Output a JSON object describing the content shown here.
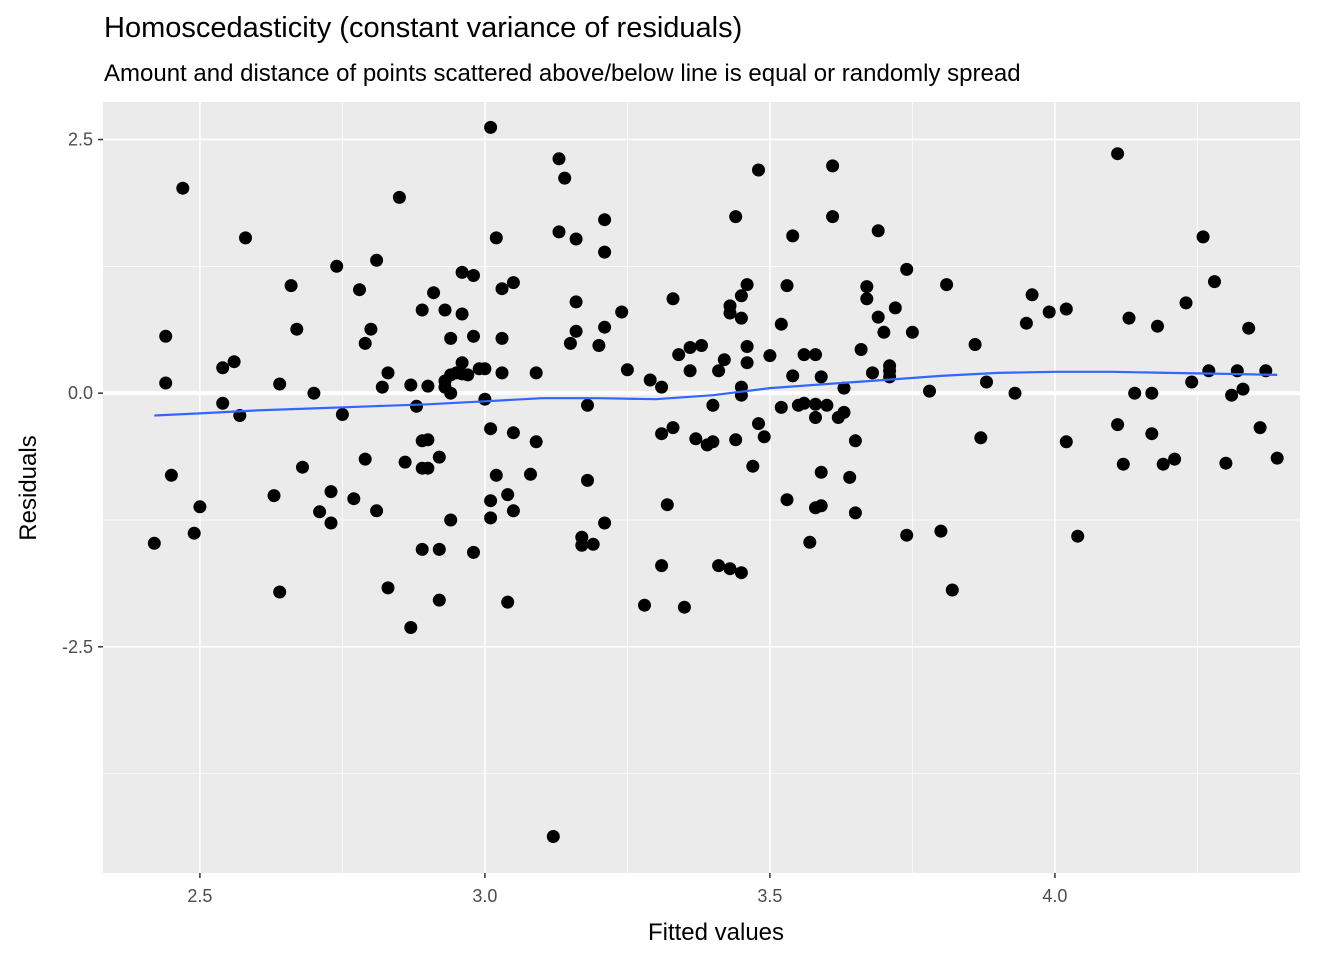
{
  "chart_data": {
    "type": "scatter",
    "title": "Homoscedasticity (constant variance of residuals)",
    "subtitle": "Amount and distance of points scattered above/below line is equal or randomly spread",
    "xlabel": "Fitted values",
    "ylabel": "Residuals",
    "xlim": [
      2.33,
      4.43
    ],
    "ylim": [
      -4.73,
      2.87
    ],
    "x_ticks": [
      2.5,
      3.0,
      3.5,
      4.0
    ],
    "x_tick_labels": [
      "2.5",
      "3.0",
      "3.5",
      "4.0"
    ],
    "y_ticks": [
      2.5,
      0.0,
      -2.5
    ],
    "y_tick_labels": [
      "2.5",
      "0.0",
      "-2.5"
    ],
    "grid": true,
    "reference_line": 0.0,
    "colors": {
      "panel": "#ebebeb",
      "grid": "#ffffff",
      "points": "#000000",
      "smooth": "#3366ff",
      "tick_text": "#4d4d4d"
    },
    "points": [
      [
        2.42,
        -1.48
      ],
      [
        2.44,
        0.56
      ],
      [
        2.44,
        0.1
      ],
      [
        2.45,
        -0.81
      ],
      [
        2.47,
        2.02
      ],
      [
        2.49,
        -1.38
      ],
      [
        2.5,
        -1.12
      ],
      [
        2.54,
        -0.1
      ],
      [
        2.54,
        0.25
      ],
      [
        2.56,
        0.31
      ],
      [
        2.57,
        -0.22
      ],
      [
        2.58,
        1.53
      ],
      [
        2.63,
        -1.01
      ],
      [
        2.64,
        -1.96
      ],
      [
        2.64,
        0.09
      ],
      [
        2.66,
        1.06
      ],
      [
        2.67,
        0.63
      ],
      [
        2.68,
        -0.73
      ],
      [
        2.7,
        0.0
      ],
      [
        2.71,
        -1.17
      ],
      [
        2.73,
        -0.97
      ],
      [
        2.73,
        -1.28
      ],
      [
        2.74,
        1.25
      ],
      [
        2.75,
        -0.21
      ],
      [
        2.77,
        -1.04
      ],
      [
        2.78,
        1.02
      ],
      [
        2.79,
        -0.65
      ],
      [
        2.79,
        0.49
      ],
      [
        2.8,
        0.63
      ],
      [
        2.81,
        1.31
      ],
      [
        2.81,
        -1.16
      ],
      [
        2.82,
        0.06
      ],
      [
        2.83,
        0.2
      ],
      [
        2.83,
        -1.92
      ],
      [
        2.85,
        1.93
      ],
      [
        2.86,
        -0.68
      ],
      [
        2.87,
        -2.31
      ],
      [
        2.87,
        0.08
      ],
      [
        2.88,
        -0.13
      ],
      [
        2.89,
        -0.74
      ],
      [
        2.89,
        -0.47
      ],
      [
        2.89,
        0.82
      ],
      [
        2.89,
        -1.54
      ],
      [
        2.9,
        -0.46
      ],
      [
        2.9,
        0.07
      ],
      [
        2.9,
        -0.74
      ],
      [
        2.91,
        0.99
      ],
      [
        2.92,
        -0.63
      ],
      [
        2.92,
        -2.04
      ],
      [
        2.92,
        -1.54
      ],
      [
        2.93,
        0.06
      ],
      [
        2.93,
        0.12
      ],
      [
        2.93,
        0.82
      ],
      [
        2.94,
        0.18
      ],
      [
        2.94,
        0.54
      ],
      [
        2.94,
        -1.25
      ],
      [
        2.94,
        0.0
      ],
      [
        2.95,
        0.2
      ],
      [
        2.96,
        0.3
      ],
      [
        2.96,
        0.78
      ],
      [
        2.96,
        0.19
      ],
      [
        2.96,
        1.19
      ],
      [
        2.97,
        0.18
      ],
      [
        2.98,
        1.16
      ],
      [
        2.98,
        -1.57
      ],
      [
        2.98,
        0.56
      ],
      [
        2.99,
        0.24
      ],
      [
        3.0,
        -0.06
      ],
      [
        3.0,
        0.24
      ],
      [
        3.01,
        2.62
      ],
      [
        3.01,
        -1.06
      ],
      [
        3.01,
        -1.23
      ],
      [
        3.01,
        -0.35
      ],
      [
        3.02,
        -0.81
      ],
      [
        3.02,
        1.53
      ],
      [
        3.03,
        0.54
      ],
      [
        3.03,
        0.2
      ],
      [
        3.03,
        1.03
      ],
      [
        3.04,
        -2.06
      ],
      [
        3.04,
        -1.0
      ],
      [
        3.05,
        -1.16
      ],
      [
        3.05,
        1.09
      ],
      [
        3.05,
        -0.39
      ],
      [
        3.08,
        -0.8
      ],
      [
        3.09,
        0.2
      ],
      [
        3.09,
        -0.48
      ],
      [
        3.12,
        -4.37
      ],
      [
        3.13,
        1.59
      ],
      [
        3.13,
        2.31
      ],
      [
        3.14,
        2.12
      ],
      [
        3.15,
        0.49
      ],
      [
        3.16,
        0.61
      ],
      [
        3.16,
        0.9
      ],
      [
        3.16,
        1.52
      ],
      [
        3.17,
        -1.5
      ],
      [
        3.17,
        -1.42
      ],
      [
        3.18,
        -0.12
      ],
      [
        3.18,
        -0.86
      ],
      [
        3.19,
        -1.49
      ],
      [
        3.2,
        0.47
      ],
      [
        3.21,
        1.39
      ],
      [
        3.21,
        0.65
      ],
      [
        3.21,
        -1.28
      ],
      [
        3.21,
        1.71
      ],
      [
        3.24,
        0.8
      ],
      [
        3.25,
        0.23
      ],
      [
        3.28,
        -2.09
      ],
      [
        3.29,
        0.13
      ],
      [
        3.31,
        -1.7
      ],
      [
        3.31,
        -0.4
      ],
      [
        3.31,
        0.06
      ],
      [
        3.32,
        -1.1
      ],
      [
        3.33,
        0.93
      ],
      [
        3.33,
        -0.34
      ],
      [
        3.34,
        0.38
      ],
      [
        3.35,
        -2.11
      ],
      [
        3.36,
        0.45
      ],
      [
        3.36,
        0.22
      ],
      [
        3.37,
        -0.45
      ],
      [
        3.38,
        0.47
      ],
      [
        3.39,
        -0.51
      ],
      [
        3.4,
        -0.48
      ],
      [
        3.4,
        -0.12
      ],
      [
        3.41,
        -1.7
      ],
      [
        3.41,
        0.22
      ],
      [
        3.42,
        0.33
      ],
      [
        3.43,
        -1.73
      ],
      [
        3.43,
        0.86
      ],
      [
        3.43,
        0.79
      ],
      [
        3.44,
        -0.46
      ],
      [
        3.44,
        1.74
      ],
      [
        3.45,
        0.06
      ],
      [
        3.45,
        -0.02
      ],
      [
        3.45,
        -1.77
      ],
      [
        3.45,
        0.96
      ],
      [
        3.45,
        0.74
      ],
      [
        3.46,
        0.46
      ],
      [
        3.46,
        0.3
      ],
      [
        3.46,
        1.07
      ],
      [
        3.47,
        -0.72
      ],
      [
        3.48,
        -0.3
      ],
      [
        3.48,
        2.2
      ],
      [
        3.49,
        -0.43
      ],
      [
        3.5,
        0.37
      ],
      [
        3.52,
        0.68
      ],
      [
        3.52,
        -0.14
      ],
      [
        3.53,
        1.06
      ],
      [
        3.53,
        -1.05
      ],
      [
        3.54,
        1.55
      ],
      [
        3.54,
        0.17
      ],
      [
        3.55,
        -0.12
      ],
      [
        3.56,
        -0.1
      ],
      [
        3.56,
        0.38
      ],
      [
        3.57,
        -1.47
      ],
      [
        3.58,
        -0.11
      ],
      [
        3.58,
        -1.13
      ],
      [
        3.58,
        0.38
      ],
      [
        3.58,
        -0.24
      ],
      [
        3.59,
        -0.78
      ],
      [
        3.59,
        -1.11
      ],
      [
        3.59,
        0.16
      ],
      [
        3.6,
        -0.12
      ],
      [
        3.61,
        2.24
      ],
      [
        3.61,
        1.74
      ],
      [
        3.62,
        -0.24
      ],
      [
        3.63,
        -0.19
      ],
      [
        3.63,
        0.05
      ],
      [
        3.64,
        -0.83
      ],
      [
        3.65,
        -1.18
      ],
      [
        3.65,
        -0.47
      ],
      [
        3.66,
        0.43
      ],
      [
        3.67,
        0.93
      ],
      [
        3.67,
        1.05
      ],
      [
        3.68,
        0.2
      ],
      [
        3.69,
        0.75
      ],
      [
        3.69,
        1.6
      ],
      [
        3.7,
        0.6
      ],
      [
        3.71,
        0.27
      ],
      [
        3.71,
        0.16
      ],
      [
        3.71,
        0.22
      ],
      [
        3.72,
        0.84
      ],
      [
        3.74,
        1.22
      ],
      [
        3.74,
        -1.4
      ],
      [
        3.75,
        0.6
      ],
      [
        3.78,
        0.02
      ],
      [
        3.8,
        -1.36
      ],
      [
        3.81,
        1.07
      ],
      [
        3.82,
        -1.94
      ],
      [
        3.86,
        0.48
      ],
      [
        3.87,
        -0.44
      ],
      [
        3.88,
        0.11
      ],
      [
        3.93,
        0.0
      ],
      [
        3.95,
        0.69
      ],
      [
        3.96,
        0.97
      ],
      [
        3.99,
        0.8
      ],
      [
        4.02,
        0.83
      ],
      [
        4.02,
        -0.48
      ],
      [
        4.04,
        -1.41
      ],
      [
        4.11,
        -0.31
      ],
      [
        4.11,
        2.36
      ],
      [
        4.12,
        -0.7
      ],
      [
        4.13,
        0.74
      ],
      [
        4.14,
        0.0
      ],
      [
        4.17,
        0.0
      ],
      [
        4.17,
        -0.4
      ],
      [
        4.18,
        0.66
      ],
      [
        4.19,
        -0.7
      ],
      [
        4.21,
        -0.65
      ],
      [
        4.23,
        0.89
      ],
      [
        4.24,
        0.11
      ],
      [
        4.26,
        1.54
      ],
      [
        4.27,
        0.22
      ],
      [
        4.28,
        1.1
      ],
      [
        4.3,
        -0.69
      ],
      [
        4.31,
        -0.02
      ],
      [
        4.32,
        0.22
      ],
      [
        4.33,
        0.04
      ],
      [
        4.34,
        0.64
      ],
      [
        4.36,
        -0.34
      ],
      [
        4.37,
        0.22
      ],
      [
        4.39,
        -0.64
      ]
    ],
    "smooth_line": [
      [
        2.42,
        -0.22
      ],
      [
        2.5,
        -0.2
      ],
      [
        2.6,
        -0.17
      ],
      [
        2.7,
        -0.15
      ],
      [
        2.8,
        -0.13
      ],
      [
        2.9,
        -0.11
      ],
      [
        3.0,
        -0.08
      ],
      [
        3.1,
        -0.05
      ],
      [
        3.2,
        -0.05
      ],
      [
        3.3,
        -0.06
      ],
      [
        3.4,
        -0.02
      ],
      [
        3.5,
        0.05
      ],
      [
        3.6,
        0.09
      ],
      [
        3.7,
        0.13
      ],
      [
        3.8,
        0.17
      ],
      [
        3.9,
        0.2
      ],
      [
        4.0,
        0.21
      ],
      [
        4.1,
        0.21
      ],
      [
        4.2,
        0.2
      ],
      [
        4.3,
        0.19
      ],
      [
        4.39,
        0.18
      ]
    ]
  }
}
